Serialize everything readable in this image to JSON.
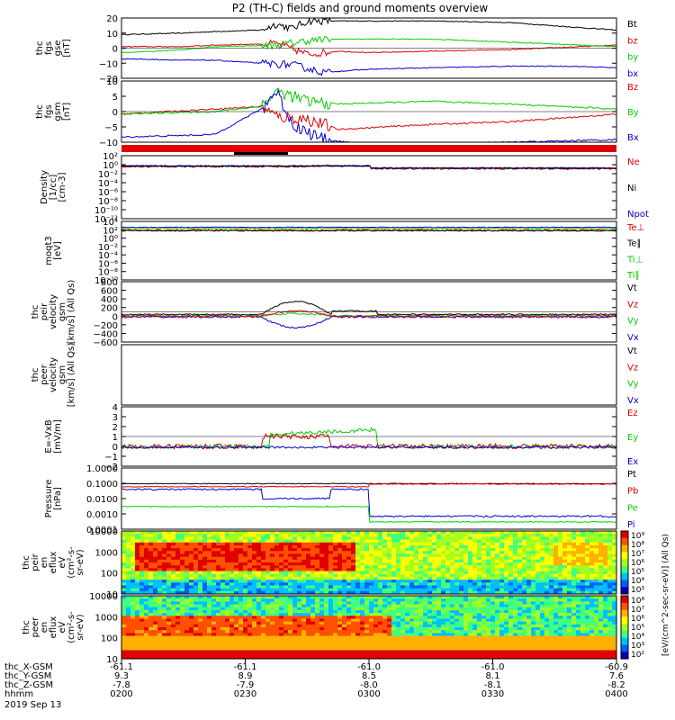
{
  "title": "P2 (TH-C) fields and ground moments overview",
  "date_label": "2019 Sep 13",
  "colors": {
    "black": "#000000",
    "red": "#e00000",
    "green": "#00d000",
    "blue": "#0000d0"
  },
  "footer": {
    "row_labels": [
      "thc_X-GSM",
      "thc_Y-GSM",
      "thc_Z-GSM",
      "hhmm"
    ],
    "columns": [
      {
        "values": [
          "-61.1",
          "9.3",
          "-7.8",
          "0200"
        ]
      },
      {
        "values": [
          "-61.1",
          "8.9",
          "-7.9",
          "0230"
        ]
      },
      {
        "values": [
          "-61.0",
          "8.5",
          "-8.0",
          "0300"
        ]
      },
      {
        "values": [
          "-61.0",
          "8.1",
          "-8.1",
          "0330"
        ]
      },
      {
        "values": [
          "-60.9",
          "7.6",
          "-8.2",
          "0400"
        ]
      }
    ]
  },
  "spectrogram_colorbar": {
    "label": "[eV/(cm^2-sec-sr-eV)] (All Qs)",
    "ticks_ion": [
      "10⁹",
      "10⁸",
      "10⁷",
      "10⁶",
      "10⁵",
      "10⁴",
      "10³"
    ],
    "ticks_elec": [
      "10⁸",
      "10⁷",
      "10⁶",
      "10⁵",
      "10⁴",
      "10³",
      "10²"
    ]
  },
  "chart_data": [
    {
      "type": "line",
      "ylabel": [
        "thc",
        "fgs",
        "gse",
        "[nT]"
      ],
      "yticks": [
        "20",
        "10",
        "0",
        "−10",
        "−20"
      ],
      "legend": [
        "Bt",
        "bz",
        "by",
        "bx"
      ],
      "legend_colors": [
        "black",
        "red",
        "green",
        "blue"
      ],
      "ylim": [
        -20,
        20
      ],
      "series_approx": {
        "Bt": [
          [
            0,
            9
          ],
          [
            40,
            10
          ],
          [
            60,
            11
          ],
          [
            90,
            12
          ],
          [
            100,
            16
          ],
          [
            110,
            13
          ],
          [
            120,
            18
          ],
          [
            130,
            18
          ],
          [
            200,
            18
          ],
          [
            250,
            17
          ],
          [
            290,
            14
          ],
          [
            319,
            12
          ]
        ],
        "bz": [
          [
            0,
            1
          ],
          [
            40,
            1
          ],
          [
            60,
            2
          ],
          [
            100,
            3
          ],
          [
            120,
            -4
          ],
          [
            140,
            -2
          ],
          [
            160,
            -3
          ],
          [
            200,
            -2
          ],
          [
            250,
            -1
          ],
          [
            319,
            2
          ]
        ],
        "by": [
          [
            0,
            -3
          ],
          [
            40,
            -1
          ],
          [
            60,
            1
          ],
          [
            100,
            2
          ],
          [
            120,
            5
          ],
          [
            140,
            6
          ],
          [
            200,
            6
          ],
          [
            250,
            4
          ],
          [
            319,
            1
          ]
        ],
        "bx": [
          [
            0,
            -7
          ],
          [
            40,
            -8
          ],
          [
            60,
            -8
          ],
          [
            90,
            -10
          ],
          [
            110,
            -11
          ],
          [
            130,
            -16
          ],
          [
            160,
            -14
          ],
          [
            200,
            -13
          ],
          [
            250,
            -12
          ],
          [
            290,
            -12
          ],
          [
            319,
            -13
          ]
        ]
      }
    },
    {
      "type": "line",
      "ylabel": [
        "thc",
        "fgs",
        "gsm",
        "[nT]"
      ],
      "yticks": [
        "10",
        "5",
        "0",
        "−5",
        "−10"
      ],
      "legend": [
        "Bz",
        "By",
        "Bx"
      ],
      "legend_colors": [
        "red",
        "green",
        "blue"
      ],
      "ylim": [
        -12,
        12
      ],
      "series_approx": {
        "Bz": [
          [
            0,
            -1
          ],
          [
            60,
            1
          ],
          [
            90,
            2
          ],
          [
            100,
            -2
          ],
          [
            120,
            -3
          ],
          [
            140,
            -7
          ],
          [
            200,
            -5
          ],
          [
            250,
            -4
          ],
          [
            319,
            -1
          ]
        ],
        "By": [
          [
            0,
            -1
          ],
          [
            60,
            0
          ],
          [
            90,
            2
          ],
          [
            100,
            8
          ],
          [
            120,
            4
          ],
          [
            140,
            3
          ],
          [
            200,
            4
          ],
          [
            250,
            3
          ],
          [
            319,
            1
          ]
        ],
        "Bx": [
          [
            0,
            -10
          ],
          [
            60,
            -9
          ],
          [
            90,
            1
          ],
          [
            100,
            8
          ],
          [
            110,
            -5
          ],
          [
            130,
            -11
          ],
          [
            160,
            -13
          ],
          [
            200,
            -13
          ],
          [
            250,
            -12
          ],
          [
            319,
            -11
          ]
        ]
      }
    },
    {
      "type": "line",
      "ylabel": [
        "Density",
        "[1/cc]",
        "[cm-3]"
      ],
      "yticks": [
        "10²",
        "10⁰",
        "10⁻²",
        "10⁻⁴",
        "10⁻⁶",
        "10⁻⁸",
        "10⁻¹⁰",
        "10⁻¹²"
      ],
      "legend": [
        "Ne",
        "Ni",
        "Npot"
      ],
      "legend_colors": [
        "red",
        "black",
        "blue"
      ]
    },
    {
      "type": "line",
      "ylabel": [
        "moqt3",
        "[eV]"
      ],
      "yticks": [
        "10⁴",
        "10²",
        "10⁰",
        "10⁻²",
        "10⁻⁴",
        "10⁻⁶",
        "10⁻⁸",
        "10⁻¹⁰"
      ],
      "legend": [
        "Te⊥",
        "Te∥",
        "Ti⊥",
        "Ti∥"
      ],
      "legend_colors": [
        "red",
        "black",
        "green",
        "green"
      ]
    },
    {
      "type": "line",
      "ylabel": [
        "thc",
        "peir",
        "velocity",
        "gsm",
        "[km/s] (All Qs)"
      ],
      "yticks": [
        "800",
        "600",
        "400",
        "200",
        "0",
        "−200",
        "−400",
        "−600"
      ],
      "legend": [
        "Vt",
        "Vz",
        "Vy",
        "Vx"
      ],
      "legend_colors": [
        "black",
        "red",
        "green",
        "blue"
      ],
      "ylim": [
        -600,
        800
      ]
    },
    {
      "type": "line",
      "ylabel": [
        "thc",
        "peer",
        "velocity",
        "gsm",
        "[km/s] (All Qs)"
      ],
      "yticks": [],
      "legend": [
        "Vt",
        "Vz",
        "Vy",
        "Vx"
      ],
      "legend_colors": [
        "black",
        "red",
        "green",
        "blue"
      ]
    },
    {
      "type": "line",
      "ylabel": [
        "E=-VxB",
        "[mV/m]"
      ],
      "yticks": [
        "4",
        "3",
        "2",
        "1",
        "0",
        "−1",
        "−2"
      ],
      "legend": [
        "Ez",
        "Ey",
        "Ex"
      ],
      "legend_colors": [
        "red",
        "green",
        "blue"
      ],
      "ylim": [
        -2,
        4
      ]
    },
    {
      "type": "line",
      "ylabel": [
        "Pressure",
        "[nPa]"
      ],
      "yticks": [
        "1.0000",
        "0.1000",
        "0.0100",
        "0.0010",
        "0.0001"
      ],
      "legend": [
        "Pt",
        "Pb",
        "Pe",
        "Pi"
      ],
      "legend_colors": [
        "black",
        "red",
        "green",
        "blue"
      ]
    },
    {
      "type": "heatmap",
      "ylabel": [
        "thc",
        "peir",
        "en",
        "eflux",
        "eV",
        "(cm²-s-",
        "sr-eV)"
      ],
      "yticks": [
        "10000",
        "1000",
        "100",
        "10"
      ]
    },
    {
      "type": "heatmap",
      "ylabel": [
        "thc",
        "peer",
        "en",
        "eflux",
        "eV",
        "(cm²-s-",
        "sr-eV)"
      ],
      "yticks": [
        "10000",
        "1000",
        "100",
        "10"
      ]
    }
  ]
}
